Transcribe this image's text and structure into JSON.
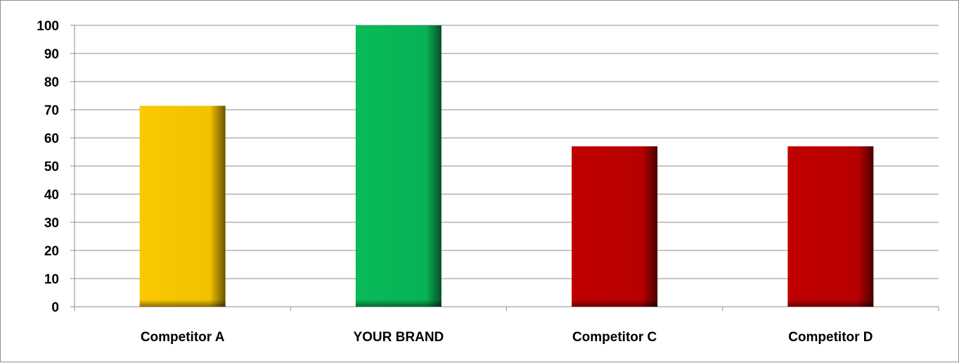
{
  "chart_data": {
    "type": "bar",
    "categories": [
      "Competitor A",
      "YOUR BRAND",
      "Competitor C",
      "Competitor D"
    ],
    "values": [
      71.4,
      100,
      57,
      57
    ],
    "colors": [
      "#fbc900",
      "#09bb59",
      "#c00000",
      "#c00000"
    ],
    "title": "",
    "xlabel": "",
    "ylabel": "",
    "ylim": [
      0,
      100
    ],
    "yticks": [
      "0",
      "10",
      "20",
      "30",
      "40",
      "50",
      "60",
      "70",
      "80",
      "90",
      "100"
    ],
    "grid": true,
    "legend": "none"
  }
}
